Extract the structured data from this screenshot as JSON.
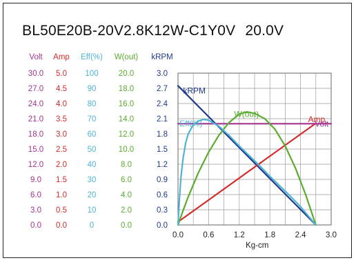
{
  "title": {
    "model": "BL50E20B-20V2.8K12W-C1Y0V",
    "voltage": "20.0V"
  },
  "chart_data": {
    "type": "line",
    "xlabel": "Kg-cm",
    "xlim": [
      0,
      3.0
    ],
    "x_ticks": [
      "0.0",
      "0.6",
      "1.2",
      "1.8",
      "2.4",
      "3.0"
    ],
    "y_axes": [
      {
        "name": "Volt",
        "color": "#a3338f",
        "ticks": [
          "0.0",
          "3.0",
          "6.0",
          "9.0",
          "12.0",
          "15.0",
          "18.0",
          "21.0",
          "24.0",
          "27.0",
          "30.0"
        ],
        "range": [
          0,
          30
        ]
      },
      {
        "name": "Amp",
        "color": "#d42a2a",
        "ticks": [
          "0.0",
          "0.5",
          "1.0",
          "1.5",
          "2.0",
          "2.5",
          "3.0",
          "3.5",
          "4.0",
          "4.5",
          "5.0"
        ],
        "range": [
          0,
          5
        ]
      },
      {
        "name": "Eff(%)",
        "color": "#4fb3d3",
        "ticks": [
          "0",
          "10",
          "20",
          "30",
          "40",
          "50",
          "60",
          "70",
          "80",
          "90",
          "100"
        ],
        "range": [
          0,
          100
        ]
      },
      {
        "name": "W(out)",
        "color": "#5aab2e",
        "ticks": [
          "0.0",
          "2.0",
          "4.0",
          "6.0",
          "8.0",
          "10.0",
          "12.0",
          "14.0",
          "16.0",
          "18.0",
          "20.0"
        ],
        "range": [
          0,
          20
        ]
      },
      {
        "name": "kRPM",
        "color": "#1f3a8c",
        "ticks": [
          "0.0",
          "0.3",
          "0.6",
          "0.9",
          "1.2",
          "1.5",
          "1.8",
          "2.1",
          "2.4",
          "2.7",
          "3.0"
        ],
        "range": [
          0,
          3.0
        ]
      }
    ],
    "grid": true,
    "series": [
      {
        "name": "kRPM",
        "color": "#1f3a8c",
        "axis": 4,
        "x": [
          0,
          2.7
        ],
        "y": [
          2.75,
          0
        ]
      },
      {
        "name": "Amp",
        "color": "#d42a2a",
        "axis": 1,
        "x": [
          0,
          2.7
        ],
        "y": [
          0.1,
          3.35
        ]
      },
      {
        "name": "Volt",
        "color": "#a3338f",
        "axis": 0,
        "x": [
          0,
          3.0
        ],
        "y": [
          20,
          20
        ]
      },
      {
        "name": "W(out)",
        "color": "#5aab2e",
        "axis": 3,
        "x": [
          0,
          0.1,
          0.2,
          0.4,
          0.6,
          0.8,
          1.0,
          1.2,
          1.35,
          1.5,
          1.7,
          1.9,
          2.1,
          2.3,
          2.5,
          2.7
        ],
        "y": [
          0,
          1.9,
          3.7,
          6.9,
          9.6,
          11.8,
          13.5,
          14.6,
          14.9,
          14.7,
          14.0,
          12.6,
          10.4,
          7.5,
          4.0,
          0
        ]
      },
      {
        "name": "Eff(%)",
        "color": "#4fb3d3",
        "axis": 2,
        "x": [
          0,
          0.03,
          0.06,
          0.1,
          0.15,
          0.2,
          0.3,
          0.4,
          0.5,
          0.6,
          0.8,
          1.0,
          1.2,
          1.4,
          1.6,
          1.8,
          2.0,
          2.2,
          2.4,
          2.6,
          2.7
        ],
        "y": [
          0,
          18,
          32,
          44,
          54,
          60,
          66,
          68.5,
          69.5,
          69,
          65,
          59,
          52,
          45.5,
          39,
          32,
          25.5,
          19,
          12,
          4,
          0
        ]
      }
    ]
  }
}
